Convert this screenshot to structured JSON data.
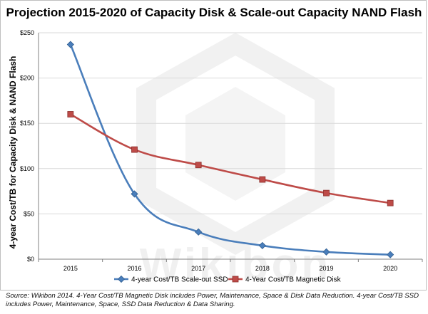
{
  "chart_data": {
    "type": "line",
    "title": "Projection 2015-2020 of Capacity Disk & Scale-out Capacity NAND Flash",
    "ylabel": "4-year Cost/TB for Capacity Disk & NAND Flash",
    "xlabel": "",
    "x": [
      "2015",
      "2016",
      "2017",
      "2018",
      "2019",
      "2020"
    ],
    "ylim": [
      0,
      250
    ],
    "yticks": [
      0,
      50,
      100,
      150,
      200,
      250
    ],
    "ytick_labels": [
      "$0",
      "$50",
      "$100",
      "$150",
      "$200",
      "$250"
    ],
    "grid": true,
    "legend_position": "bottom",
    "series": [
      {
        "name": "4-year Cost/TB Scale-out SSD",
        "values": [
          237,
          72,
          30,
          15,
          8,
          5
        ],
        "color": "#4a7ebb",
        "marker": "diamond"
      },
      {
        "name": "4-Year Cost/TB Magnetic Disk",
        "values": [
          160,
          121,
          104,
          88,
          73,
          62
        ],
        "color": "#be4b48",
        "marker": "square"
      }
    ]
  },
  "watermark": "Wikibon",
  "source_note": "Source: Wikibon 2014. 4-Year Cost/TB Magnetic Disk includes Power, Maintenance, Space & Disk Data Reduction. 4-year Cost/TB SSD includes Power, Maintenance, Space, SSD Data Reduction & Data Sharing."
}
